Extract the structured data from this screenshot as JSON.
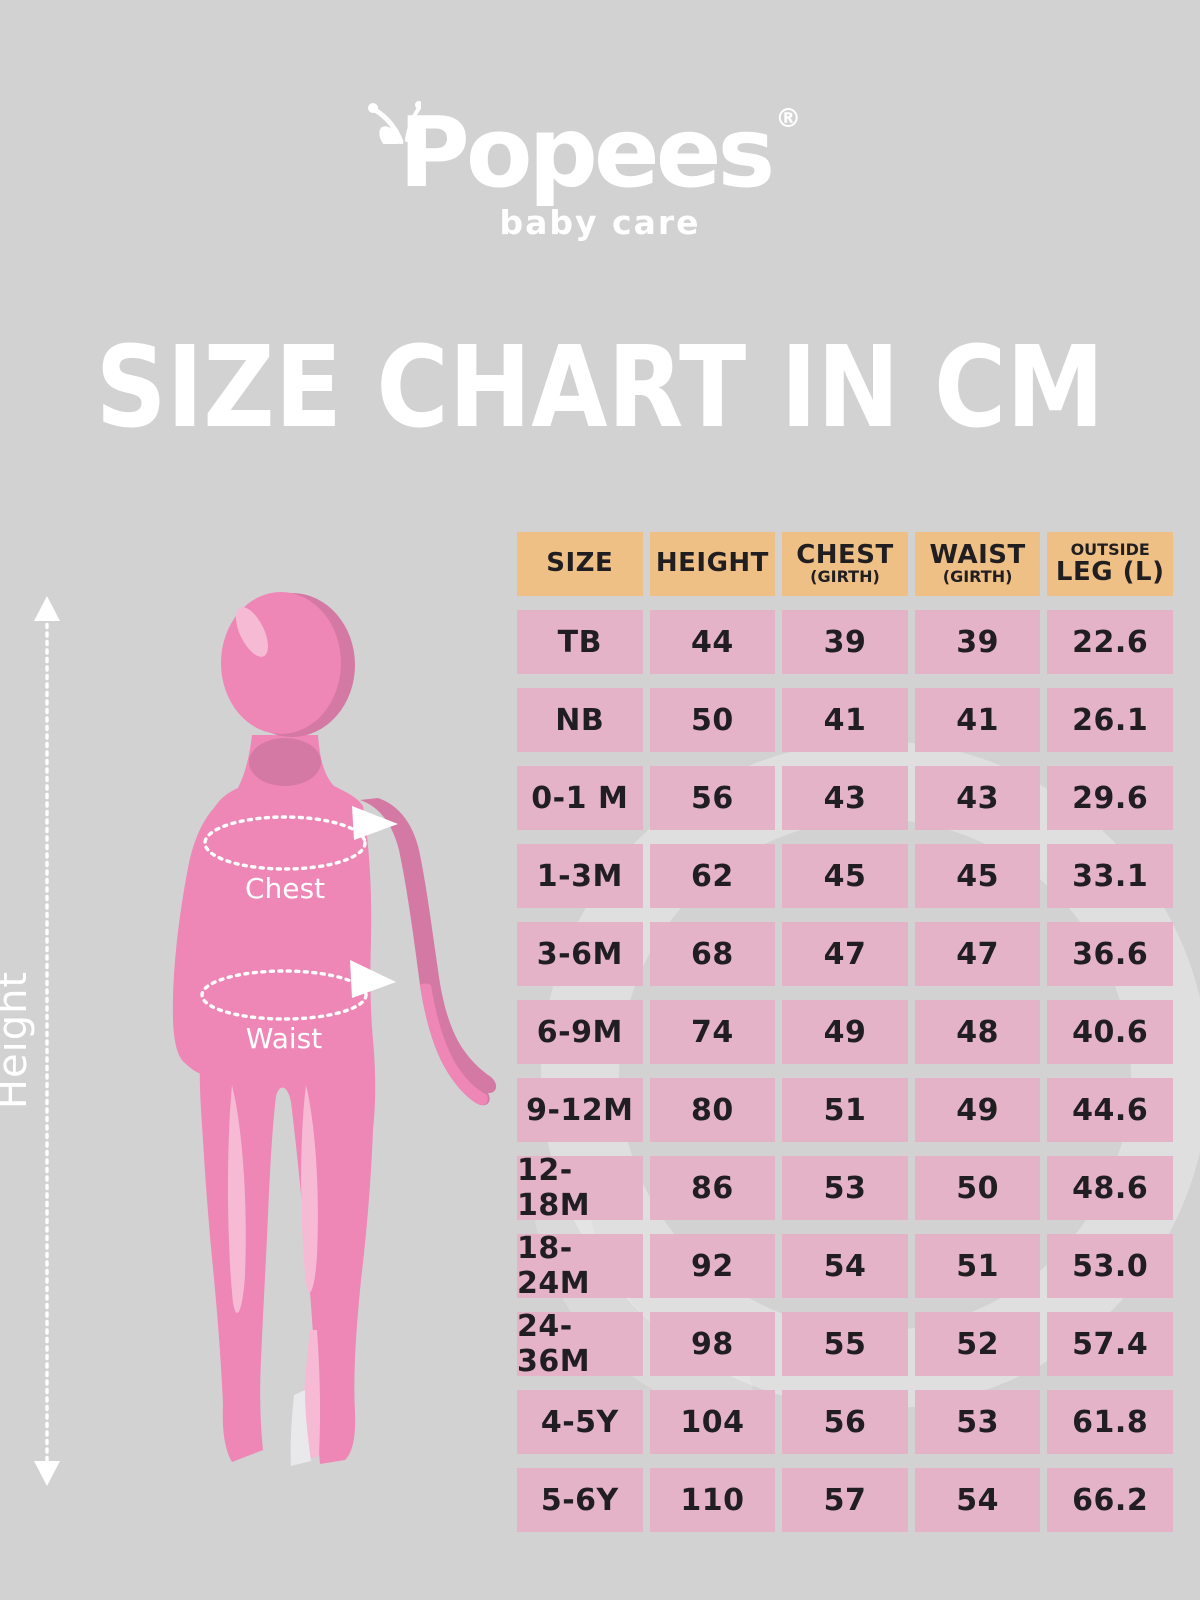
{
  "brand": {
    "name": "Popees",
    "registered_mark": "®",
    "tagline": "baby care"
  },
  "title": "SIZE CHART IN CM",
  "figure": {
    "height_label": "Height",
    "chest_label": "Chest",
    "waist_label": "Waist"
  },
  "table": {
    "columns": [
      {
        "label": "SIZE",
        "sub": "",
        "sub_position": "none"
      },
      {
        "label": "HEIGHT",
        "sub": "",
        "sub_position": "none"
      },
      {
        "label": "CHEST",
        "sub": "(GIRTH)",
        "sub_position": "below"
      },
      {
        "label": "WAIST",
        "sub": "(GIRTH)",
        "sub_position": "below"
      },
      {
        "label": "LEG (L)",
        "sub": "OUTSIDE",
        "sub_position": "above"
      }
    ],
    "rows": [
      [
        "TB",
        "44",
        "39",
        "39",
        "22.6"
      ],
      [
        "NB",
        "50",
        "41",
        "41",
        "26.1"
      ],
      [
        "0-1 M",
        "56",
        "43",
        "43",
        "29.6"
      ],
      [
        "1-3M",
        "62",
        "45",
        "45",
        "33.1"
      ],
      [
        "3-6M",
        "68",
        "47",
        "47",
        "36.6"
      ],
      [
        "6-9M",
        "74",
        "49",
        "48",
        "40.6"
      ],
      [
        "9-12M",
        "80",
        "51",
        "49",
        "44.6"
      ],
      [
        "12-18M",
        "86",
        "53",
        "50",
        "48.6"
      ],
      [
        "18-24M",
        "92",
        "54",
        "51",
        "53.0"
      ],
      [
        "24-36M",
        "98",
        "55",
        "52",
        "57.4"
      ],
      [
        "4-5Y",
        "104",
        "56",
        "53",
        "61.8"
      ],
      [
        "5-6Y",
        "110",
        "57",
        "54",
        "66.2"
      ]
    ]
  },
  "colors": {
    "background": "#D2D2D2",
    "header_bg": "#EEC086",
    "cell_bg": "#E5B3C8",
    "text_dark": "#211E21",
    "white": "#FFFFFF",
    "figure_pink": "#EE86B6",
    "figure_pink_dark": "#D478A4",
    "figure_pink_light": "#F6BAD4"
  }
}
